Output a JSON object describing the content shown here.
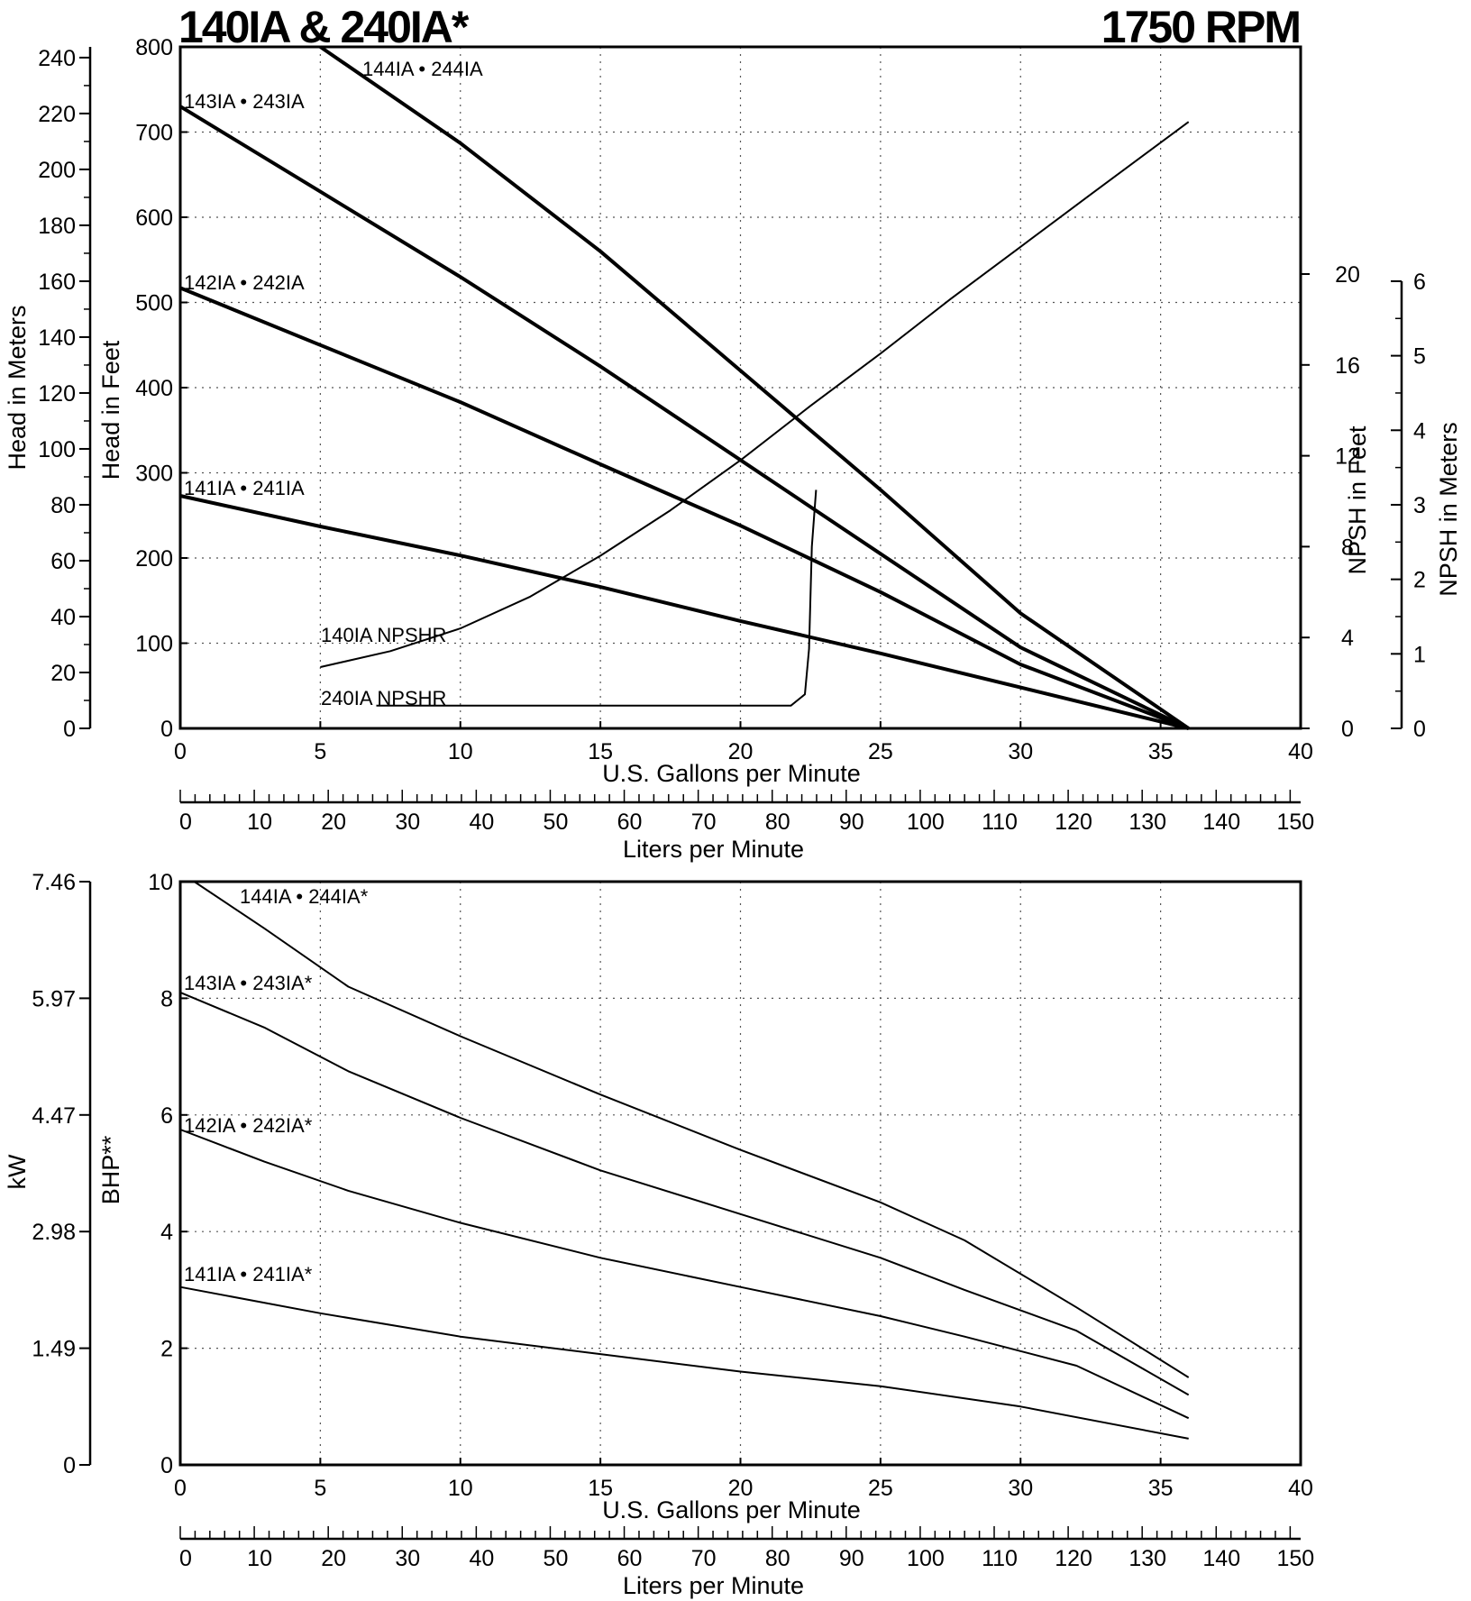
{
  "header": {
    "title": "140IA & 240IA*",
    "rpm": "1750 RPM"
  },
  "chart_data": [
    {
      "type": "line",
      "title": "",
      "xlabel": "U.S. Gallons per Minute",
      "x2label": "Liters per Minute",
      "ylabel": "Head in Feet",
      "y2label": "Head in Meters",
      "y3label": "NPSH in Feet",
      "y4label": "NPSH in Meters",
      "xlim": [
        0,
        40
      ],
      "ylim": [
        0,
        800
      ],
      "x_ticks": [
        0,
        5,
        10,
        15,
        20,
        25,
        30,
        35,
        40
      ],
      "y_ticks": [
        0,
        100,
        200,
        300,
        400,
        500,
        600,
        700,
        800
      ],
      "meters_ticks": [
        0,
        20,
        40,
        60,
        80,
        100,
        120,
        140,
        160,
        180,
        200,
        220,
        240
      ],
      "npsh_ft_ticks": [
        0,
        4,
        8,
        12,
        16,
        20
      ],
      "npsh_m_ticks": [
        0,
        1,
        2,
        3,
        4,
        5,
        6
      ],
      "lpm_ticks": [
        0,
        10,
        20,
        30,
        40,
        50,
        60,
        70,
        80,
        90,
        100,
        110,
        120,
        130,
        140,
        150
      ],
      "grid": true,
      "series": [
        {
          "name": "144IA • 244IA",
          "style": "head",
          "x": [
            5,
            10,
            15,
            20,
            25,
            30,
            36
          ],
          "y": [
            800,
            687,
            560,
            420,
            280,
            135,
            0
          ]
        },
        {
          "name": "143IA • 243IA",
          "style": "head",
          "x": [
            0,
            5,
            10,
            15,
            20,
            25,
            30,
            36
          ],
          "y": [
            730,
            630,
            530,
            425,
            315,
            205,
            95,
            0
          ]
        },
        {
          "name": "142IA • 242IA",
          "style": "head",
          "x": [
            0,
            5,
            10,
            15,
            20,
            25,
            30,
            36
          ],
          "y": [
            517,
            450,
            383,
            310,
            238,
            160,
            75,
            0
          ]
        },
        {
          "name": "141IA • 241IA",
          "style": "head",
          "x": [
            0,
            5,
            10,
            15,
            20,
            25,
            30,
            36
          ],
          "y": [
            273,
            237,
            203,
            166,
            126,
            88,
            48,
            0
          ]
        },
        {
          "name": "140IA NPSHR",
          "style": "npsh",
          "x": [
            5,
            7.5,
            10,
            12.5,
            15,
            17.5,
            20,
            22.5,
            25,
            27.5,
            30,
            32.5,
            36
          ],
          "y": [
            2.7,
            3.4,
            4.4,
            5.8,
            7.6,
            9.6,
            11.8,
            14.2,
            16.5,
            18.9,
            21.2,
            23.5,
            26.7
          ]
        },
        {
          "name": "240IA NPSHR",
          "style": "npsh",
          "x": [
            7,
            10,
            15,
            20,
            21.8,
            22.3,
            22.45,
            22.55,
            22.7
          ],
          "y": [
            1,
            1,
            1,
            1,
            1,
            1.5,
            3.5,
            8,
            10.5
          ]
        }
      ]
    },
    {
      "type": "line",
      "title": "",
      "xlabel": "U.S. Gallons per Minute",
      "x2label": "Liters per Minute",
      "ylabel": "BHP**",
      "y2label": "kW",
      "xlim": [
        0,
        40
      ],
      "ylim": [
        0,
        10
      ],
      "x_ticks": [
        0,
        5,
        10,
        15,
        20,
        25,
        30,
        35,
        40
      ],
      "y_ticks": [
        0,
        2,
        4,
        6,
        8,
        10
      ],
      "kw_ticks": [
        "0",
        "1.49",
        "2.98",
        "4.47",
        "5.97",
        "7.46"
      ],
      "lpm_ticks": [
        0,
        10,
        20,
        30,
        40,
        50,
        60,
        70,
        80,
        90,
        100,
        110,
        120,
        130,
        140,
        150
      ],
      "grid": true,
      "series": [
        {
          "name": "144IA • 244IA*",
          "x": [
            0.5,
            3,
            6,
            10,
            15,
            20,
            25,
            28,
            32,
            36
          ],
          "y": [
            10,
            9.2,
            8.2,
            7.35,
            6.35,
            5.4,
            4.5,
            3.85,
            2.7,
            1.5
          ]
        },
        {
          "name": "143IA • 243IA*",
          "x": [
            0,
            3,
            6,
            10,
            15,
            20,
            25,
            28,
            32,
            36
          ],
          "y": [
            8.1,
            7.5,
            6.75,
            5.95,
            5.05,
            4.3,
            3.55,
            3.0,
            2.3,
            1.2
          ]
        },
        {
          "name": "142IA • 242IA*",
          "x": [
            0,
            3,
            6,
            10,
            15,
            20,
            25,
            28,
            32,
            36
          ],
          "y": [
            5.75,
            5.2,
            4.7,
            4.15,
            3.55,
            3.05,
            2.55,
            2.2,
            1.7,
            0.8
          ]
        },
        {
          "name": "141IA • 241IA*",
          "x": [
            0,
            5,
            10,
            15,
            20,
            25,
            30,
            36
          ],
          "y": [
            3.05,
            2.6,
            2.2,
            1.9,
            1.6,
            1.35,
            1.0,
            0.45
          ]
        }
      ]
    }
  ]
}
